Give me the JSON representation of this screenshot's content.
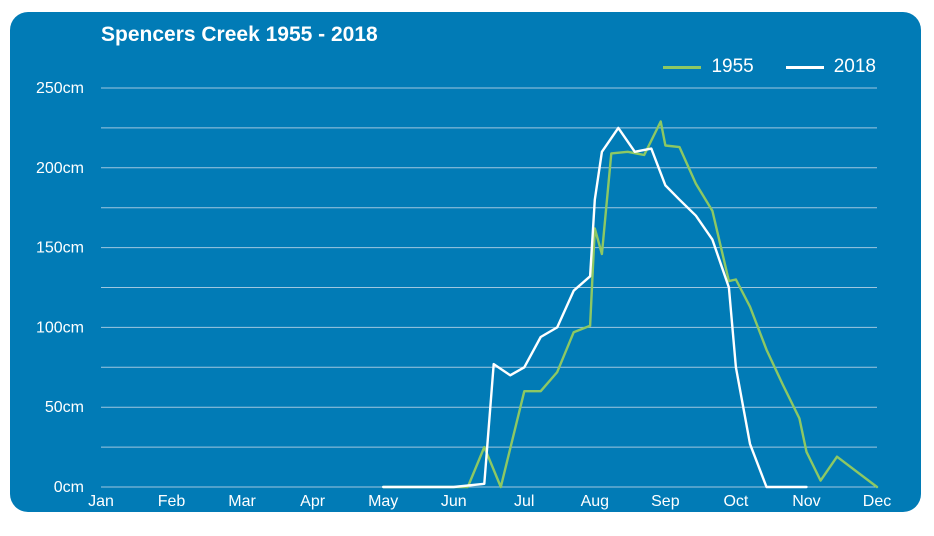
{
  "colors": {
    "background": "#017bb6",
    "grid": "#9fc7e0",
    "text": "#ffffff",
    "series_1955": "#8dc863",
    "series_2018": "#ffffff"
  },
  "chart_data": {
    "type": "line",
    "title": "Spencers Creek 1955 - 2018",
    "xlabel": "",
    "ylabel": "",
    "x_ticks": [
      "Jan",
      "Feb",
      "Mar",
      "Apr",
      "May",
      "Jun",
      "Jul",
      "Aug",
      "Sep",
      "Oct",
      "Nov",
      "Dec"
    ],
    "y_ticks": [
      "0cm",
      "50cm",
      "100cm",
      "150cm",
      "200cm",
      "250cm"
    ],
    "ylim": [
      0,
      250
    ],
    "xlim": [
      "Jan",
      "Dec"
    ],
    "grid": true,
    "legend_position": "top-right",
    "series": [
      {
        "name": "1955",
        "x": [
          "May 1",
          "Jun 7",
          "Jun 14",
          "Jun 21",
          "Jul 1",
          "Jul 8",
          "Jul 15",
          "Jul 22",
          "Jul 29",
          "Aug 1",
          "Aug 4",
          "Aug 8",
          "Aug 15",
          "Aug 22",
          "Aug 29",
          "Sep 1",
          "Sep 7",
          "Sep 14",
          "Sep 21",
          "Sep 28",
          "Oct 1",
          "Oct 7",
          "Oct 14",
          "Oct 21",
          "Oct 28",
          "Nov 1",
          "Nov 7",
          "Nov 14",
          "Dec 1"
        ],
        "values": [
          0,
          0,
          25,
          0,
          60,
          60,
          72,
          97,
          101,
          162,
          146,
          209,
          210,
          208,
          229,
          214,
          213,
          190,
          173,
          129,
          130,
          113,
          86,
          64,
          43,
          22,
          4,
          19,
          0
        ]
      },
      {
        "name": "2018",
        "x": [
          "May 1",
          "Jun 1",
          "Jun 14",
          "Jun 18",
          "Jun 25",
          "Jul 1",
          "Jul 8",
          "Jul 15",
          "Jul 22",
          "Jul 29",
          "Aug 1",
          "Aug 4",
          "Aug 11",
          "Aug 18",
          "Aug 25",
          "Sep 1",
          "Sep 7",
          "Sep 14",
          "Sep 21",
          "Sep 28",
          "Oct 1",
          "Oct 7",
          "Oct 14",
          "Oct 21",
          "Oct 28",
          "Nov 1"
        ],
        "values": [
          0,
          0,
          2,
          77,
          70,
          75,
          94,
          100,
          123,
          132,
          180,
          210,
          225,
          210,
          212,
          189,
          180,
          170,
          155,
          125,
          75,
          27,
          0,
          0,
          0,
          0
        ]
      }
    ]
  }
}
